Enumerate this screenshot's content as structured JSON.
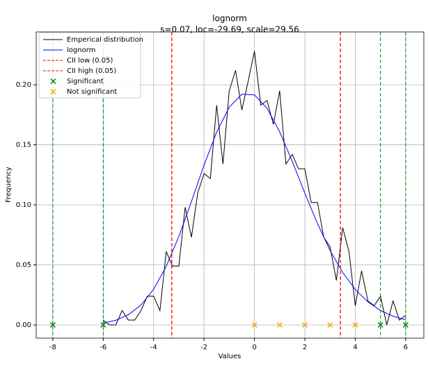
{
  "chart_data": {
    "type": "line",
    "title": "lognorm",
    "subtitle": "s=0.07, loc=-29.69, scale=29.56",
    "xlabel": "Values",
    "ylabel": "Frequency",
    "xlim": [
      -8.66,
      6.72
    ],
    "ylim": [
      -0.011,
      0.244
    ],
    "xticks": [
      -8,
      -6,
      -4,
      -2,
      0,
      2,
      4,
      6
    ],
    "yticks": [
      {
        "value": 0,
        "label": "0.00"
      },
      {
        "value": 0.05,
        "label": "0.05"
      },
      {
        "value": 0.1,
        "label": "0.10"
      },
      {
        "value": 0.15,
        "label": "0.15"
      },
      {
        "value": 0.2,
        "label": "0.20"
      }
    ],
    "grid": true,
    "legend": "upper left",
    "series": [
      {
        "name": "Emperical distribution",
        "color": "#000000",
        "kind": "line",
        "x": [
          -6.0,
          -5.75,
          -5.5,
          -5.25,
          -5.0,
          -4.75,
          -4.5,
          -4.25,
          -4.0,
          -3.75,
          -3.5,
          -3.25,
          -3.0,
          -2.75,
          -2.5,
          -2.25,
          -2.0,
          -1.75,
          -1.5,
          -1.25,
          -1.0,
          -0.75,
          -0.5,
          -0.25,
          0.0,
          0.25,
          0.5,
          0.75,
          1.0,
          1.25,
          1.5,
          1.75,
          2.0,
          2.25,
          2.5,
          2.75,
          3.0,
          3.25,
          3.5,
          3.75,
          4.0,
          4.25,
          4.5,
          4.75,
          5.0,
          5.25,
          5.5,
          5.75,
          6.0
        ],
        "values": [
          0.004,
          0.0,
          0.0,
          0.012,
          0.004,
          0.004,
          0.012,
          0.024,
          0.024,
          0.012,
          0.061,
          0.049,
          0.049,
          0.098,
          0.073,
          0.11,
          0.126,
          0.122,
          0.183,
          0.134,
          0.195,
          0.212,
          0.179,
          0.203,
          0.228,
          0.183,
          0.187,
          0.167,
          0.195,
          0.134,
          0.142,
          0.13,
          0.13,
          0.102,
          0.102,
          0.073,
          0.065,
          0.037,
          0.081,
          0.061,
          0.016,
          0.045,
          0.02,
          0.016,
          0.024,
          0.0,
          0.02,
          0.004,
          0.008
        ]
      },
      {
        "name": "lognorm",
        "color": "#0000ff",
        "kind": "line",
        "x": [
          -6,
          -5.5,
          -5,
          -4.5,
          -4,
          -3.5,
          -3,
          -2.5,
          -2,
          -1.5,
          -1,
          -0.5,
          0,
          0.5,
          1,
          1.5,
          2,
          2.5,
          3,
          3.5,
          4,
          4.5,
          5,
          5.5,
          6
        ],
        "values": [
          0.0016,
          0.0039,
          0.0085,
          0.0166,
          0.0297,
          0.0488,
          0.0737,
          0.1028,
          0.1331,
          0.1606,
          0.1814,
          0.1921,
          0.1916,
          0.1804,
          0.1608,
          0.1362,
          0.1097,
          0.0844,
          0.062,
          0.0437,
          0.0295,
          0.0192,
          0.012,
          0.0073,
          0.0043
        ]
      },
      {
        "name": "CII low (0.05)",
        "color": "#ff0000",
        "kind": "vline",
        "x": -3.28
      },
      {
        "name": "CII high (0.05)",
        "color": "#ff0000",
        "kind": "vline",
        "x": 3.41
      },
      {
        "name": "Significant",
        "color": "#008000",
        "kind": "scatter",
        "guide_lines": true,
        "x": [
          -8,
          -6,
          5,
          6
        ],
        "values": [
          0,
          0,
          0,
          0
        ]
      },
      {
        "name": "Not significant",
        "color": "#ffa500",
        "kind": "scatter",
        "x": [
          0,
          1,
          2,
          3,
          4
        ],
        "values": [
          0,
          0,
          0,
          0,
          0
        ]
      }
    ]
  }
}
